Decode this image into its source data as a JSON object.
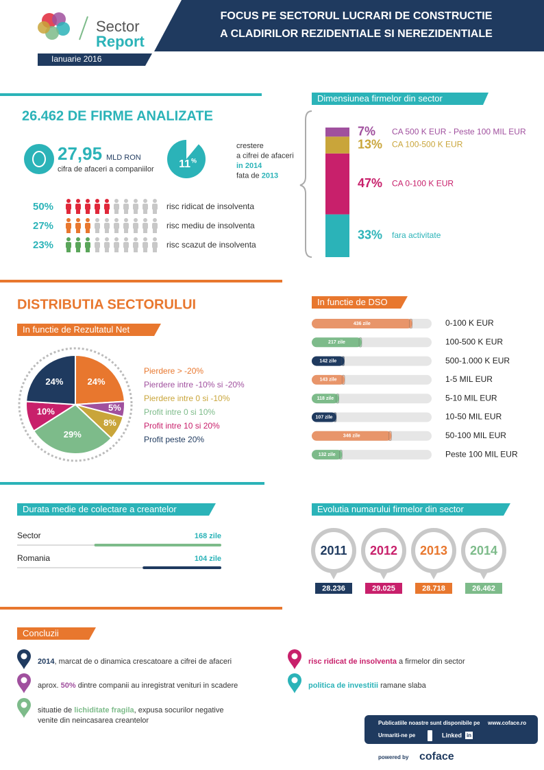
{
  "header": {
    "logo_line1": "Sector",
    "logo_line2": "Report",
    "date": "Ianuarie 2016",
    "title_line1": "FOCUS PE SECTORUL LUCRARI DE CONSTRUCTIE",
    "title_line2": "A CLADIRILOR REZIDENTIALE SI NEREZIDENTIALE"
  },
  "overview": {
    "title": "26.462 DE FIRME ANALIZATE",
    "turnover_value": "27,95",
    "turnover_unit": "MLD RON",
    "turnover_caption": "cifra de afaceri a companiilor",
    "growth": {
      "value": 11,
      "unit": "%",
      "caption": [
        [
          {
            "text": "crestere"
          }
        ],
        [
          {
            "text": "a cifrei de afaceri"
          }
        ],
        [
          {
            "text": "in 2014",
            "bold": true
          }
        ],
        [
          {
            "text": "fata de "
          },
          {
            "text": "2013",
            "bold": true
          }
        ]
      ]
    },
    "risk": [
      {
        "value": 50,
        "label": "50%",
        "text": "risc ridicat de insolventa",
        "color": "#e0283a"
      },
      {
        "value": 27,
        "label": "27%",
        "text": "risc mediu de insolventa",
        "color": "#e8772e"
      },
      {
        "value": 23,
        "label": "23%",
        "text": "risc scazut de insolventa",
        "color": "#5aa55a"
      }
    ]
  },
  "distribution_title": "DISTRIBUTIA SECTORULUI",
  "chart_data": [
    {
      "type": "stacked-bar",
      "title": "Dimensiunea firmelor din sector",
      "ylim": [
        0,
        100
      ],
      "series": [
        {
          "name": "fara activitate",
          "color": "#2bb3b8",
          "values": [
            33
          ],
          "value_labels": [
            "33%"
          ]
        },
        {
          "name": "CA 0-100 K EUR",
          "color": "#c8206b",
          "values": [
            47
          ],
          "value_labels": [
            "47%"
          ]
        },
        {
          "name": "CA 100-500 K EUR",
          "color": "#c9a53a",
          "values": [
            13
          ],
          "value_labels": [
            "13%"
          ]
        },
        {
          "name": "CA 500 K EUR - Peste 100 MIL EUR",
          "color": "#a0509e",
          "values": [
            7
          ],
          "value_labels": [
            "7%"
          ]
        }
      ]
    },
    {
      "type": "pie",
      "title": "In functie de Rezultatul Net",
      "categories": [
        "Pierdere > -20%",
        "Pierdere intre -10% si -20%",
        "Pierdere intre 0 si -10%",
        "Profit intre 0 si 10%",
        "Profit intre 10 si 20%",
        "Profit peste 20%"
      ],
      "values": [
        24,
        5,
        8,
        29,
        10,
        24
      ],
      "value_labels": [
        "24%",
        "5%",
        "8%",
        "29%",
        "10%",
        "24%"
      ],
      "colors": [
        "#e8772e",
        "#a0509e",
        "#c9a53a",
        "#7dbb8a",
        "#c8206b",
        "#1f3a5f"
      ]
    },
    {
      "type": "bar",
      "title": "In functie de DSO",
      "categories": [
        "0-100 K EUR",
        "100-500 K EUR",
        "500-1.000 K EUR",
        "1-5 MIL EUR",
        "5-10 MIL EUR",
        "10-50 MIL EUR",
        "50-100 MIL EUR",
        "Peste 100 MIL EUR"
      ],
      "values": [
        436,
        217,
        142,
        143,
        118,
        107,
        346,
        132
      ],
      "value_labels": [
        "436 zile",
        "217 zile",
        "142 zile",
        "143 zile",
        "118 zile",
        "107 zile",
        "346 zile",
        "132 zile"
      ],
      "colors": [
        "#e8956a",
        "#7dbb8a",
        "#1f3a5f",
        "#e8956a",
        "#7dbb8a",
        "#1f3a5f",
        "#e8956a",
        "#7dbb8a"
      ],
      "xlim": [
        0,
        520
      ]
    },
    {
      "type": "bar",
      "title": "Durata medie de colectare a creantelor",
      "categories": [
        "Sector",
        "Romania"
      ],
      "values": [
        168,
        104
      ],
      "value_labels": [
        "168 zile",
        "104 zile"
      ],
      "colors": [
        "#7dbb8a",
        "#1f3a5f"
      ],
      "label_color": "#2bb3b8",
      "xlim": [
        0,
        270
      ]
    }
  ],
  "evolution": {
    "title": "Evolutia numarului firmelor din sector",
    "items": [
      {
        "year": "2011",
        "count": "28.236",
        "color": "#1f3a5f"
      },
      {
        "year": "2012",
        "count": "29.025",
        "color": "#c8206b"
      },
      {
        "year": "2013",
        "count": "28.718",
        "color": "#e8772e"
      },
      {
        "year": "2014",
        "count": "26.462",
        "color": "#7dbb8a"
      }
    ]
  },
  "conclusions": {
    "title": "Concluzii",
    "items": [
      {
        "color": "#1f3a5f",
        "lines": [
          [
            {
              "text": "2014",
              "bold": true
            },
            {
              "text": ", marcat de o dinamica crescatoare a cifrei de afaceri"
            }
          ]
        ]
      },
      {
        "color": "#a0509e",
        "lines": [
          [
            {
              "text": "aprox. "
            },
            {
              "text": "50%",
              "bold": true
            },
            {
              "text": " dintre companii au inregistrat venituri in scadere"
            }
          ]
        ]
      },
      {
        "color": "#7dbb8a",
        "lines": [
          [
            {
              "text": "situatie de "
            },
            {
              "text": "lichiditate fragila",
              "bold": true
            },
            {
              "text": ", expusa socurilor negative"
            }
          ],
          [
            {
              "text": "venite din neincasarea creantelor"
            }
          ]
        ]
      },
      {
        "color": "#c8206b",
        "lines": [
          [
            {
              "text": "risc ridicat de insolventa",
              "bold": true
            },
            {
              "text": " a firmelor din sector"
            }
          ]
        ]
      },
      {
        "color": "#2bb3b8",
        "lines": [
          [
            {
              "text": "politica de investitii",
              "bold": true
            },
            {
              "text": " ramane slaba"
            }
          ]
        ]
      }
    ]
  },
  "footer": {
    "publications": "Publicatiile noastre sunt disponibile pe",
    "website": "www.coface.ro",
    "follow": "Urmariti-ne pe",
    "linked": "Linked",
    "in": "in",
    "powered": "powered by",
    "brand": "coface"
  }
}
